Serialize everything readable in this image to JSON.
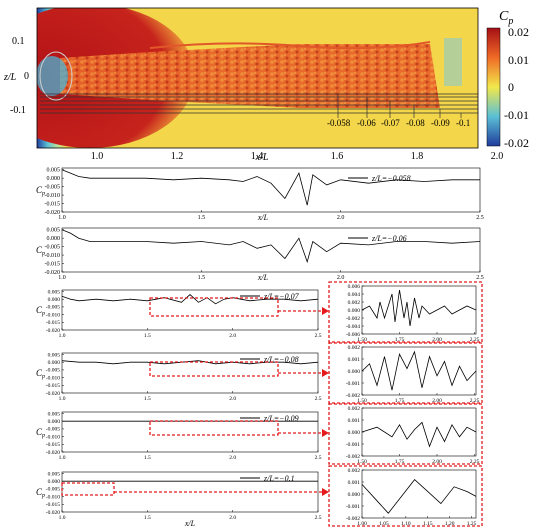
{
  "top_panel": {
    "colorbar_label": "C",
    "colorbar_sub": "p",
    "colorbar_ticks": [
      "0.02",
      "0.01",
      "0",
      "-0.01",
      "-0.02"
    ],
    "colorbar_range": [
      -0.02,
      0.02
    ],
    "y_label": "z/L",
    "y_ticks": [
      "0.1",
      "0",
      "-0.1"
    ],
    "x_label": "x/L",
    "x_ticks": [
      "1.0",
      "1.2",
      "1.4",
      "1.6",
      "1.8",
      "2.0"
    ],
    "probe_labels": [
      "-0.058",
      "-0.06",
      "-0.07",
      "-0.08",
      "-0.09",
      "-0.1"
    ],
    "colors": {
      "high": "#c0141e",
      "mid": "#f2e84b",
      "low": "#1e3c9c",
      "background": "#f3d64a"
    }
  },
  "chart_data": [
    {
      "type": "line",
      "legend": "z/L=−0.058",
      "xlabel": "x/L",
      "ylabel": "C",
      "ylabel_sub": "p",
      "xlim": [
        1.0,
        2.5
      ],
      "ylim": [
        -0.02,
        0.006
      ],
      "x_ticks": [
        "1.0",
        "1.5",
        "2.0",
        "2.5"
      ],
      "y_ticks": [
        "0.005",
        "0.000",
        "-0.005",
        "-0.010",
        "-0.015",
        "-0.020"
      ],
      "series": [
        {
          "x": [
            1.0,
            1.03,
            1.06,
            1.1,
            1.2,
            1.3,
            1.4,
            1.5,
            1.6,
            1.65,
            1.7,
            1.75,
            1.8,
            1.85,
            1.88,
            1.9,
            1.95,
            2.0,
            2.1,
            2.2,
            2.3,
            2.4,
            2.5
          ],
          "y": [
            0.005,
            0.003,
            0.001,
            0.0,
            0.0,
            0.0,
            -0.001,
            0.0,
            -0.001,
            -0.002,
            0.001,
            -0.003,
            -0.012,
            0.003,
            -0.016,
            0.002,
            -0.004,
            -0.001,
            -0.003,
            -0.001,
            -0.002,
            -0.001,
            -0.001
          ]
        }
      ]
    },
    {
      "type": "line",
      "legend": "z/L=−0.06",
      "xlabel": "x/L",
      "ylabel": "C",
      "ylabel_sub": "p",
      "xlim": [
        1.0,
        2.5
      ],
      "ylim": [
        -0.02,
        0.006
      ],
      "x_ticks": [
        "1.0",
        "1.5",
        "2.0",
        "2.5"
      ],
      "y_ticks": [
        "0.005",
        "0.000",
        "-0.005",
        "-0.010",
        "-0.015",
        "-0.020"
      ],
      "series": [
        {
          "x": [
            1.0,
            1.03,
            1.06,
            1.1,
            1.2,
            1.3,
            1.4,
            1.5,
            1.6,
            1.65,
            1.7,
            1.75,
            1.8,
            1.85,
            1.88,
            1.9,
            1.95,
            2.0,
            2.1,
            2.2,
            2.3,
            2.4,
            2.5
          ],
          "y": [
            0.005,
            0.003,
            0.0,
            -0.002,
            -0.002,
            -0.002,
            -0.003,
            -0.002,
            -0.004,
            -0.002,
            -0.006,
            -0.004,
            -0.012,
            0.0,
            -0.014,
            -0.002,
            -0.008,
            -0.003,
            -0.004,
            -0.002,
            -0.002,
            -0.003,
            -0.002
          ]
        }
      ]
    },
    {
      "type": "line",
      "legend": "z/L=−0.07",
      "xlabel": "x/L",
      "ylabel": "C",
      "ylabel_sub": "p",
      "xlim": [
        1.0,
        2.5
      ],
      "ylim": [
        -0.02,
        0.006
      ],
      "x_ticks": [
        "1.0",
        "1.5",
        "2.0",
        "2.5"
      ],
      "y_ticks": [
        "0.005",
        "0.000",
        "-0.005",
        "-0.010",
        "-0.015",
        "-0.020"
      ],
      "series": [
        {
          "x": [
            1.0,
            1.05,
            1.1,
            1.2,
            1.3,
            1.4,
            1.5,
            1.6,
            1.7,
            1.75,
            1.8,
            1.85,
            1.9,
            1.95,
            2.0,
            2.1,
            2.2,
            2.3,
            2.4,
            2.5
          ],
          "y": [
            0.002,
            0.0,
            -0.001,
            0.0,
            -0.001,
            0.0,
            -0.001,
            0.001,
            -0.002,
            0.003,
            -0.002,
            0.001,
            -0.003,
            0.0,
            0.001,
            -0.001,
            0.0,
            0.0,
            -0.001,
            0.0
          ]
        }
      ]
    },
    {
      "type": "line",
      "legend": "z/L=−0.08",
      "xlabel": "x/L",
      "ylabel": "C",
      "ylabel_sub": "p",
      "xlim": [
        1.0,
        2.5
      ],
      "ylim": [
        -0.02,
        0.006
      ],
      "x_ticks": [
        "1.0",
        "1.5",
        "2.0",
        "2.5"
      ],
      "y_ticks": [
        "0.005",
        "0.000",
        "-0.005",
        "-0.010",
        "-0.015",
        "-0.020"
      ],
      "series": [
        {
          "x": [
            1.0,
            1.1,
            1.2,
            1.3,
            1.4,
            1.5,
            1.6,
            1.7,
            1.8,
            1.9,
            2.0,
            2.1,
            2.2,
            2.3,
            2.4,
            2.5
          ],
          "y": [
            0.001,
            0.0,
            0.0,
            -0.001,
            0.0,
            0.0,
            -0.001,
            0.0,
            0.001,
            -0.001,
            0.0,
            -0.001,
            0.0,
            0.0,
            -0.001,
            0.0
          ]
        }
      ]
    },
    {
      "type": "line",
      "legend": "z/L=−0.09",
      "xlabel": "x/L",
      "ylabel": "C",
      "ylabel_sub": "p",
      "xlim": [
        1.0,
        2.5
      ],
      "ylim": [
        -0.02,
        0.006
      ],
      "x_ticks": [
        "1.0",
        "1.5",
        "2.0",
        "2.5"
      ],
      "y_ticks": [
        "0.005",
        "0.000",
        "-0.005",
        "-0.010",
        "-0.015",
        "-0.020"
      ],
      "series": [
        {
          "x": [
            1.0,
            1.1,
            1.2,
            1.3,
            1.4,
            1.5,
            1.6,
            1.7,
            1.8,
            1.9,
            2.0,
            2.1,
            2.2,
            2.3,
            2.4,
            2.5
          ],
          "y": [
            0.0,
            0.0,
            0.0,
            0.0,
            0.0,
            0.0,
            0.0,
            0.0,
            0.0,
            0.0,
            0.0,
            0.0,
            0.0,
            0.0,
            0.0,
            0.0
          ]
        }
      ]
    },
    {
      "type": "line",
      "legend": "z/L=−0.1",
      "xlabel": "x/L",
      "ylabel": "C",
      "ylabel_sub": "p",
      "xlim": [
        1.0,
        2.5
      ],
      "ylim": [
        -0.02,
        0.006
      ],
      "x_ticks": [
        "1.0",
        "1.5",
        "2.0",
        "2.5"
      ],
      "y_ticks": [
        "0.005",
        "0.000",
        "-0.005",
        "-0.010",
        "-0.015",
        "-0.020"
      ],
      "series": [
        {
          "x": [
            1.0,
            1.1,
            1.2,
            1.3,
            1.4,
            1.5,
            1.6,
            1.7,
            1.8,
            1.9,
            2.0,
            2.1,
            2.2,
            2.3,
            2.4,
            2.5
          ],
          "y": [
            0.0,
            0.0,
            0.0,
            0.0,
            0.0,
            0.0,
            0.0,
            0.0,
            0.0,
            0.0,
            0.0,
            0.0,
            0.0,
            0.0,
            0.0,
            0.0
          ]
        }
      ]
    },
    {
      "type": "line",
      "zoom_of": "z/L=−0.07",
      "xlim": [
        1.5,
        2.26
      ],
      "ylim": [
        -0.006,
        0.006
      ],
      "x_ticks": [
        "1.50",
        "1.75",
        "2.00",
        "2.25"
      ],
      "y_ticks": [
        "0.006",
        "0.004",
        "0.002",
        "0.000",
        "-0.002",
        "-0.004",
        "-0.006"
      ],
      "series": [
        {
          "x": [
            1.5,
            1.55,
            1.6,
            1.62,
            1.65,
            1.7,
            1.72,
            1.75,
            1.78,
            1.8,
            1.82,
            1.85,
            1.88,
            1.9,
            1.95,
            2.0,
            2.05,
            2.1,
            2.15,
            2.2,
            2.26
          ],
          "y": [
            0.0,
            0.001,
            -0.002,
            0.002,
            -0.002,
            0.004,
            -0.003,
            0.005,
            -0.002,
            0.002,
            -0.004,
            0.003,
            -0.002,
            0.001,
            -0.001,
            0.0,
            0.001,
            -0.001,
            0.0,
            0.001,
            0.0
          ]
        }
      ]
    },
    {
      "type": "line",
      "zoom_of": "z/L=−0.08",
      "xlim": [
        1.5,
        2.26
      ],
      "ylim": [
        -0.002,
        0.002
      ],
      "x_ticks": [
        "1.50",
        "1.75",
        "2.00",
        "2.25"
      ],
      "y_ticks": [
        "0.002",
        "0.001",
        "0.000",
        "-0.001",
        "-0.002"
      ],
      "series": [
        {
          "x": [
            1.5,
            1.55,
            1.6,
            1.65,
            1.7,
            1.75,
            1.8,
            1.85,
            1.9,
            1.95,
            2.0,
            2.05,
            2.1,
            2.15,
            2.2,
            2.26
          ],
          "y": [
            0.0,
            0.0006,
            -0.0012,
            0.0012,
            -0.0016,
            0.0014,
            0.0002,
            0.0016,
            -0.0014,
            0.0012,
            -0.0004,
            0.0008,
            -0.0012,
            0.0004,
            -0.0008,
            0.0
          ]
        }
      ]
    },
    {
      "type": "line",
      "zoom_of": "z/L=−0.09",
      "xlim": [
        1.5,
        2.26
      ],
      "ylim": [
        -0.002,
        0.002
      ],
      "x_ticks": [
        "1.50",
        "1.75",
        "2.00",
        "2.25"
      ],
      "y_ticks": [
        "0.002",
        "0.001",
        "0.000",
        "-0.001",
        "-0.002"
      ],
      "series": [
        {
          "x": [
            1.5,
            1.6,
            1.7,
            1.75,
            1.8,
            1.85,
            1.9,
            1.95,
            2.0,
            2.05,
            2.1,
            2.15,
            2.2,
            2.26
          ],
          "y": [
            0.0,
            0.0004,
            -0.0004,
            0.0006,
            -0.0006,
            0.0002,
            0.0008,
            -0.0012,
            0.0004,
            -0.0008,
            0.0006,
            -0.0004,
            0.0004,
            0.0
          ]
        }
      ]
    },
    {
      "type": "line",
      "zoom_of": "z/L=−0.1",
      "xlim": [
        1.0,
        1.26
      ],
      "ylim": [
        -0.002,
        0.002
      ],
      "x_ticks": [
        "1.00",
        "1.05",
        "1.10",
        "1.15",
        "1.20",
        "1.25"
      ],
      "y_ticks": [
        "0.002",
        "0.001",
        "0.000",
        "-0.001",
        "-0.002"
      ],
      "series": [
        {
          "x": [
            1.0,
            1.03,
            1.06,
            1.09,
            1.12,
            1.15,
            1.18,
            1.21,
            1.24,
            1.26
          ],
          "y": [
            0.0008,
            -0.0004,
            -0.0016,
            -0.0002,
            0.0012,
            0.0002,
            -0.0008,
            0.0006,
            0.0002,
            -0.0002
          ]
        }
      ]
    }
  ]
}
